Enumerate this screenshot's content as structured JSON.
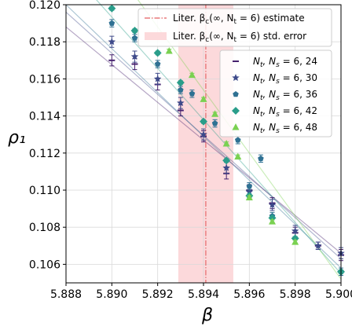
{
  "chart_data": {
    "type": "scatter",
    "xlabel": "β",
    "ylabel": "ρ₁",
    "xlim": [
      5.888,
      5.9
    ],
    "ylim": [
      0.105,
      0.12
    ],
    "x_ticks": [
      5.888,
      5.89,
      5.892,
      5.894,
      5.896,
      5.898,
      5.9
    ],
    "x_tick_labels": [
      "5.888",
      "5.890",
      "5.892",
      "5.894",
      "5.896",
      "5.898",
      "5.900"
    ],
    "y_ticks": [
      0.106,
      0.108,
      0.11,
      0.112,
      0.114,
      0.116,
      0.118,
      0.12
    ],
    "y_tick_labels": [
      "0.106",
      "0.108",
      "0.110",
      "0.112",
      "0.114",
      "0.116",
      "0.118",
      "0.120"
    ],
    "grid": true,
    "reference": {
      "estimate": 5.8941,
      "error_band": [
        5.8929,
        5.8953
      ],
      "estimate_label": "Liter. β",
      "estimate_label_sub": "c",
      "estimate_label_rest": "(∞, N",
      "estimate_label_sub2": "t",
      "estimate_label_tail": " = 6) estimate",
      "band_label": "Liter. β",
      "band_label_sub": "c",
      "band_label_rest": "(∞, N",
      "band_label_sub2": "t",
      "band_label_tail": " = 6) std. error",
      "estimate_color": "#e8787a",
      "band_color": "#fcd9db"
    },
    "series": [
      {
        "name_prefix": "N",
        "name_sub1": "t",
        "name_mid": ", N",
        "name_sub2": "s",
        "name_tail": " = 6, 24",
        "marker": "dash",
        "color": "#46216e",
        "fit": [
          [
            5.888,
            0.1188
          ],
          [
            5.9,
            0.1066
          ]
        ],
        "points": [
          [
            5.89,
            0.117,
            0.0003
          ],
          [
            5.891,
            0.1168,
            0.0003
          ],
          [
            5.892,
            0.1157,
            0.0003
          ],
          [
            5.893,
            0.1143,
            0.0003
          ],
          [
            5.894,
            0.1129,
            0.0003
          ],
          [
            5.895,
            0.1109,
            0.0003
          ],
          [
            5.896,
            0.11,
            0.0003
          ],
          [
            5.897,
            0.1093,
            0.0003
          ],
          [
            5.898,
            0.1077,
            0.0003
          ],
          [
            5.899,
            0.107,
            0.0002
          ],
          [
            5.9,
            0.1065,
            0.0003
          ]
        ]
      },
      {
        "name_prefix": "N",
        "name_sub1": "t",
        "name_mid": ", N",
        "name_sub2": "s",
        "name_tail": " = 6, 30",
        "marker": "star",
        "color": "#3e4a8a",
        "fit": [
          [
            5.888,
            0.1196
          ],
          [
            5.9,
            0.1063
          ]
        ],
        "points": [
          [
            5.89,
            0.118,
            0.0003
          ],
          [
            5.891,
            0.1172,
            0.0003
          ],
          [
            5.892,
            0.116,
            0.0003
          ],
          [
            5.893,
            0.1147,
            0.0003
          ],
          [
            5.894,
            0.113,
            0.0003
          ],
          [
            5.895,
            0.1112,
            0.0003
          ],
          [
            5.896,
            0.1099,
            0.0003
          ],
          [
            5.897,
            0.1092,
            0.0003
          ],
          [
            5.898,
            0.1078,
            0.0003
          ],
          [
            5.899,
            0.107,
            0.0002
          ],
          [
            5.9,
            0.1066,
            0.0003
          ]
        ]
      },
      {
        "name_prefix": "N",
        "name_sub1": "t",
        "name_mid": ", N",
        "name_sub2": "s",
        "name_tail": " = 6, 36",
        "marker": "pentagon",
        "color": "#2f7193",
        "fit": [
          [
            5.888,
            0.12
          ],
          [
            5.9,
            0.1058
          ]
        ],
        "points": [
          [
            5.89,
            0.119,
            0.0002
          ],
          [
            5.891,
            0.1182,
            0.0002
          ],
          [
            5.892,
            0.1168,
            0.0002
          ],
          [
            5.893,
            0.1154,
            0.0002
          ],
          [
            5.8935,
            0.1152,
            0.0002
          ],
          [
            5.8945,
            0.1136,
            0.0002
          ],
          [
            5.8955,
            0.1127,
            0.0002
          ],
          [
            5.8965,
            0.1117,
            0.0002
          ],
          [
            5.896,
            0.1102,
            0.0002
          ],
          [
            5.897,
            0.1086,
            0.0002
          ],
          [
            5.9,
            0.1056,
            0.0002
          ]
        ]
      },
      {
        "name_prefix": "N",
        "name_sub1": "t",
        "name_mid": ", N",
        "name_sub2": "s",
        "name_tail": " = 6, 42",
        "marker": "diamond",
        "color": "#2a9d8a",
        "fit": [
          [
            5.888,
            0.1221
          ],
          [
            5.9,
            0.1055
          ]
        ],
        "points": [
          [
            5.89,
            0.1198,
            0.0001
          ],
          [
            5.891,
            0.1186,
            0.0001
          ],
          [
            5.892,
            0.1174,
            0.0001
          ],
          [
            5.893,
            0.1158,
            0.0001
          ],
          [
            5.894,
            0.1137,
            0.0001
          ],
          [
            5.895,
            0.1116,
            0.0001
          ],
          [
            5.896,
            0.1097,
            0.0001
          ],
          [
            5.897,
            0.1085,
            0.0001
          ],
          [
            5.898,
            0.1074,
            0.0001
          ],
          [
            5.9,
            0.1056,
            0.0001
          ]
        ]
      },
      {
        "name_prefix": "N",
        "name_sub1": "t",
        "name_mid": ", N",
        "name_sub2": "s",
        "name_tail": " = 6, 48",
        "marker": "triangle",
        "color": "#7ad151",
        "fit": [
          [
            5.891,
            0.1205
          ],
          [
            5.9,
            0.1052
          ]
        ],
        "points": [
          [
            5.8925,
            0.1175,
            0.0001
          ],
          [
            5.8935,
            0.1162,
            0.0001
          ],
          [
            5.894,
            0.1149,
            0.0001
          ],
          [
            5.8945,
            0.1141,
            0.0001
          ],
          [
            5.895,
            0.1125,
            0.0001
          ],
          [
            5.8955,
            0.1118,
            0.0001
          ],
          [
            5.896,
            0.1096,
            0.0001
          ],
          [
            5.897,
            0.1083,
            0.0001
          ],
          [
            5.898,
            0.1072,
            0.0001
          ]
        ]
      }
    ]
  }
}
